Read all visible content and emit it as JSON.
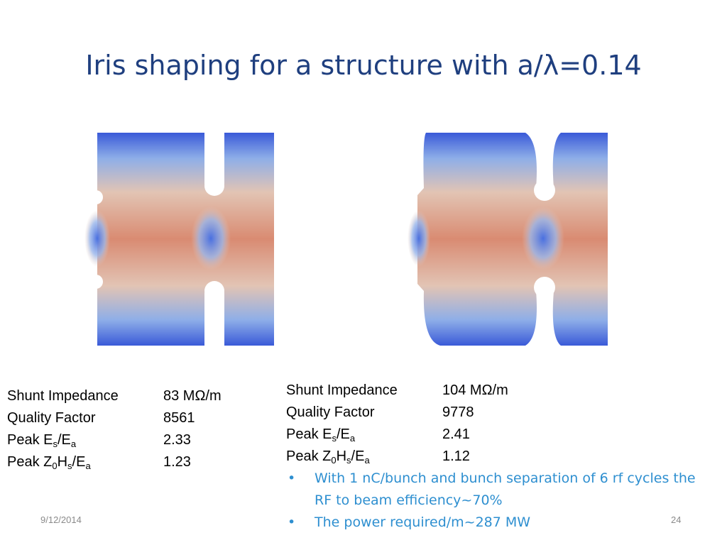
{
  "header": {
    "title": "Iris shaping for a structure with a/λ=0.14"
  },
  "left_table": {
    "rows": [
      {
        "label": [
          {
            "text": "Shunt Impedance"
          }
        ],
        "value": "83 MΩ/m"
      },
      {
        "label": [
          {
            "text": "Quality Factor"
          }
        ],
        "value": "8561"
      },
      {
        "label": [
          {
            "text": "Peak E"
          },
          {
            "sub": "s"
          },
          {
            "text": "/E"
          },
          {
            "sub": "a"
          }
        ],
        "value": "2.33"
      },
      {
        "label": [
          {
            "text": "Peak Z"
          },
          {
            "sub": "0"
          },
          {
            "text": "H"
          },
          {
            "sub": "s"
          },
          {
            "text": "/E"
          },
          {
            "sub": "a"
          }
        ],
        "value": "1.23"
      }
    ]
  },
  "right_table": {
    "rows": [
      {
        "label": [
          {
            "text": "Shunt Impedance"
          }
        ],
        "value": "104 MΩ/m"
      },
      {
        "label": [
          {
            "text": "Quality Factor"
          }
        ],
        "value": "9778"
      },
      {
        "label": [
          {
            "text": "Peak E"
          },
          {
            "sub": "s"
          },
          {
            "text": "/E"
          },
          {
            "sub": "a"
          }
        ],
        "value": "2.41"
      },
      {
        "label": [
          {
            "text": "Peak Z"
          },
          {
            "sub": "0"
          },
          {
            "text": "H"
          },
          {
            "sub": "s"
          },
          {
            "text": "/E"
          },
          {
            "sub": "a"
          }
        ],
        "value": "1.12"
      }
    ],
    "bullets": [
      "With 1 nC/bunch and bunch separation of 6 rf cycles the RF to beam efficiency~70%",
      "The power required/m~287 MW"
    ]
  },
  "footer": {
    "date": "9/12/2014",
    "page": "24"
  }
}
